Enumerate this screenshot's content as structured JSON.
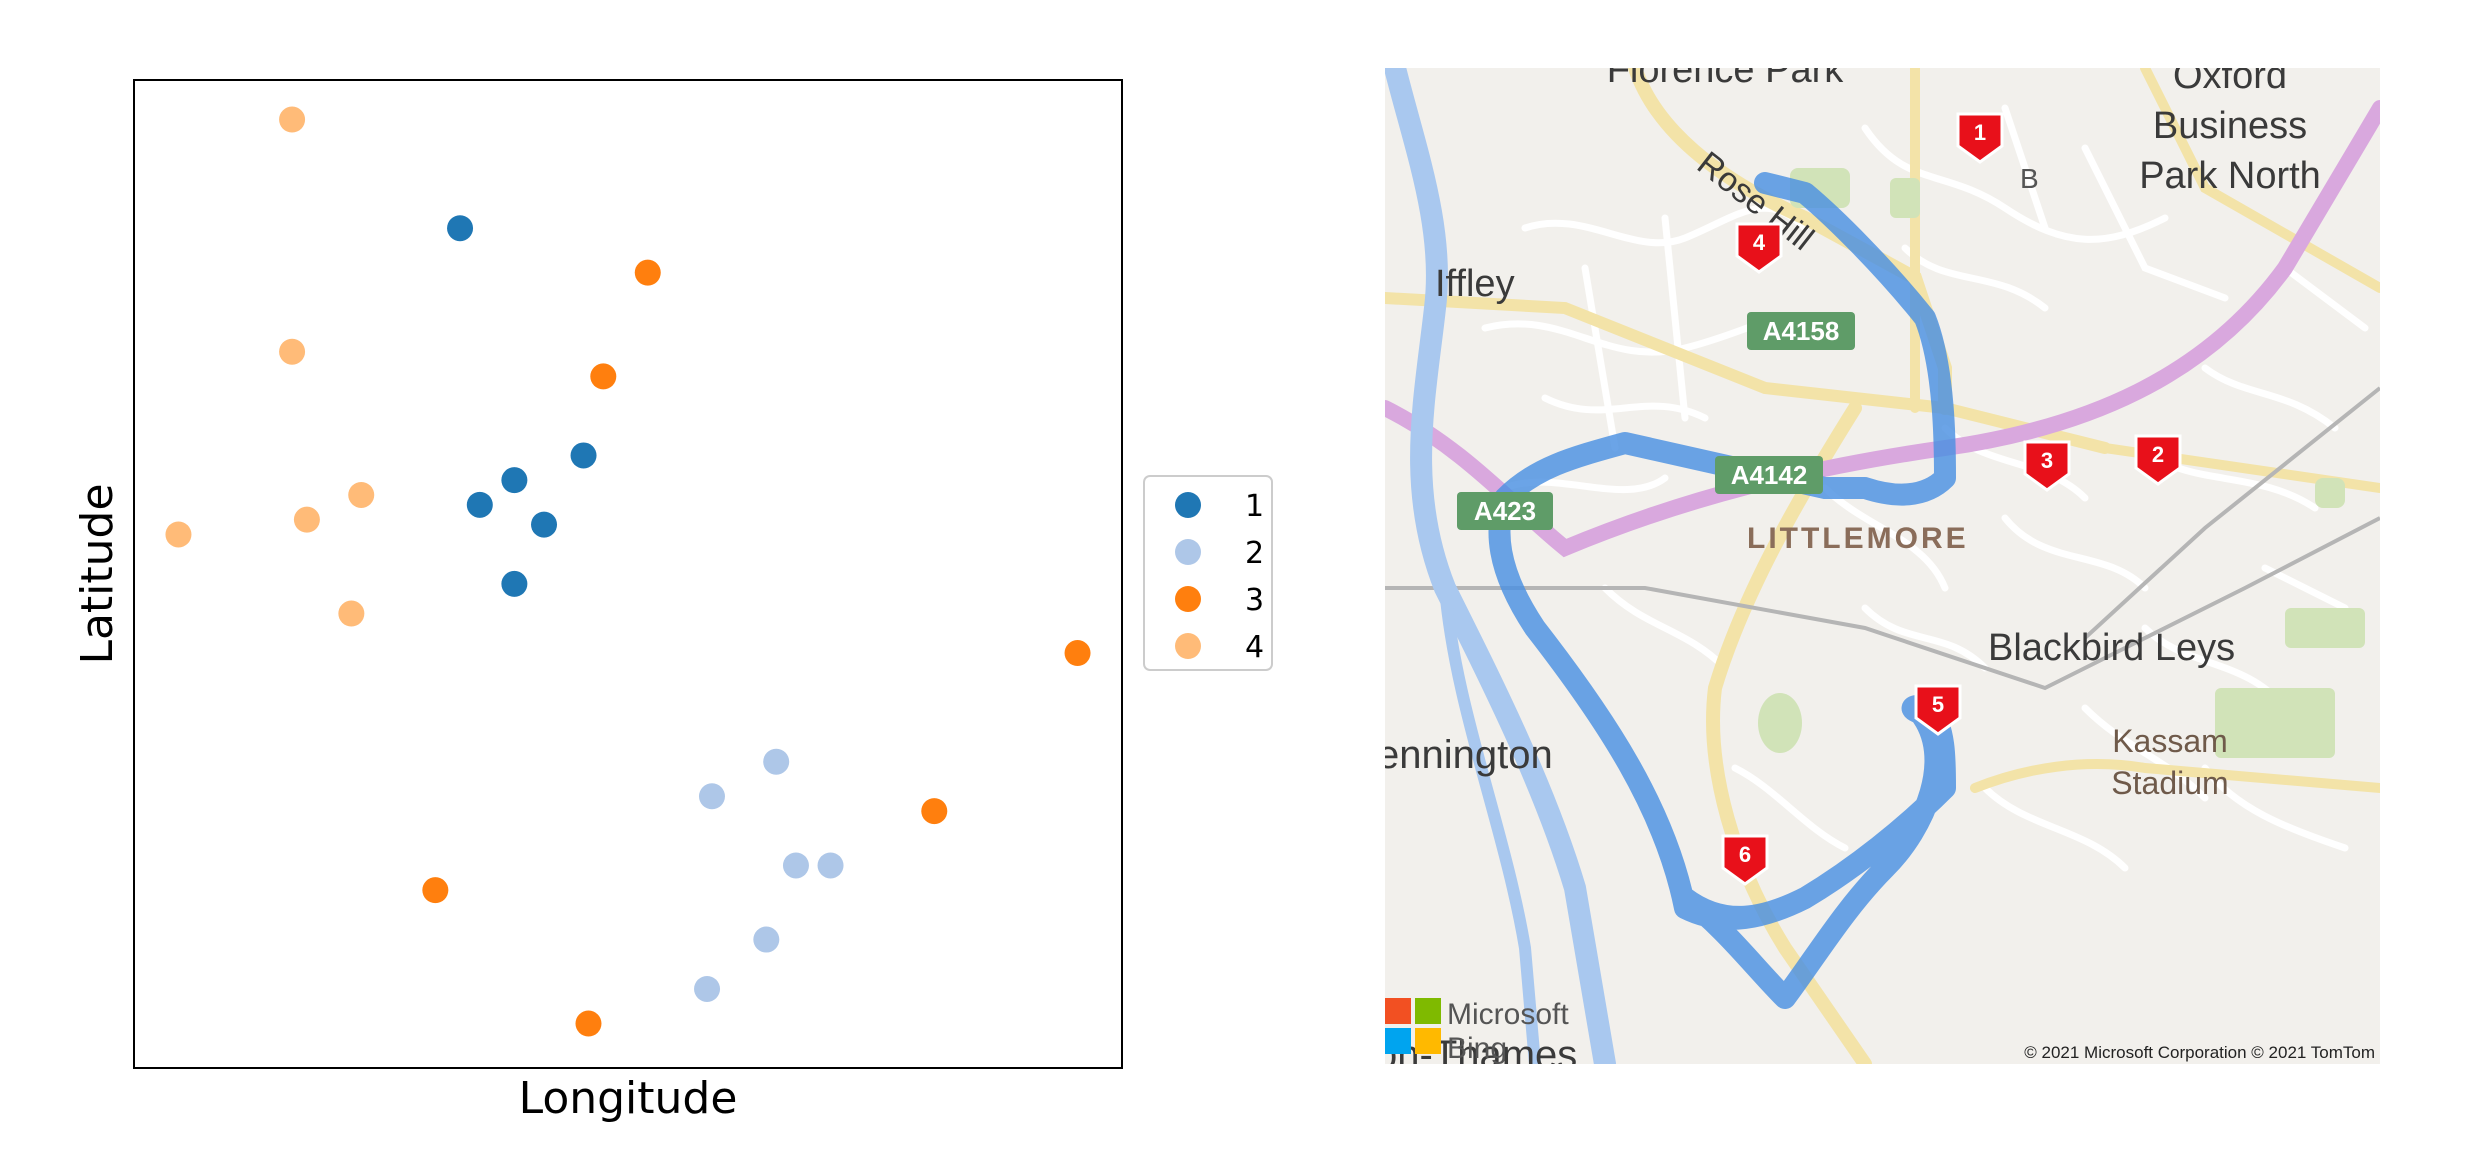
{
  "chart_data": {
    "type": "scatter",
    "title": "",
    "xlabel": "Longitude",
    "ylabel": "Latitude",
    "xlim": [
      0,
      100
    ],
    "ylim": [
      0,
      100
    ],
    "grid": false,
    "legend_placement": "right, outside plot",
    "ticks": false,
    "series": [
      {
        "name": "1",
        "color": "#1f77b4",
        "points": [
          [
            33,
            85
          ],
          [
            45.5,
            62
          ],
          [
            38.5,
            59.5
          ],
          [
            35,
            57
          ],
          [
            41.5,
            55
          ],
          [
            38.5,
            49
          ]
        ]
      },
      {
        "name": "2",
        "color": "#aec7e8",
        "points": [
          [
            65,
            31
          ],
          [
            58.5,
            27.5
          ],
          [
            67,
            20.5
          ],
          [
            70.5,
            20.5
          ],
          [
            64,
            13
          ],
          [
            58,
            8
          ]
        ]
      },
      {
        "name": "3",
        "color": "#ff7f0e",
        "points": [
          [
            52,
            80.5
          ],
          [
            47.5,
            70
          ],
          [
            95.5,
            42
          ],
          [
            81,
            26
          ],
          [
            30.5,
            18
          ],
          [
            46,
            4.5
          ]
        ]
      },
      {
        "name": "4",
        "color": "#ffbb78",
        "points": [
          [
            16,
            96
          ],
          [
            16,
            72.5
          ],
          [
            23,
            58
          ],
          [
            17.5,
            55.5
          ],
          [
            4.5,
            54
          ],
          [
            22,
            46
          ]
        ]
      }
    ]
  },
  "map": {
    "route_color": "#4a90e2",
    "marker_color": "#e8101a",
    "stops": [
      "1",
      "2",
      "3",
      "4",
      "5",
      "6"
    ],
    "places": {
      "florence_park": "Florence Park",
      "oxford_business_park_line1": "Oxford",
      "oxford_business_park_line2": "Business",
      "oxford_business_park_line3": "Park North",
      "iffley": "Iffley",
      "rose_hill": "Rose Hill",
      "littlemore": "LITTLEMORE",
      "blackbird_leys": "Blackbird Leys",
      "kassam_line1": "Kassam",
      "kassam_line2": "Stadium",
      "sandford_partial": "ennington",
      "thames_partial": "on-Thames",
      "b_road_fragment": "B"
    },
    "road_shields": {
      "a4158": "A4158",
      "a4142": "A4142",
      "a423": "A423"
    },
    "brand_line1": "Microsoft",
    "brand_line2": "Bing",
    "copyright": "© 2021 Microsoft Corporation © 2021 TomTom"
  }
}
